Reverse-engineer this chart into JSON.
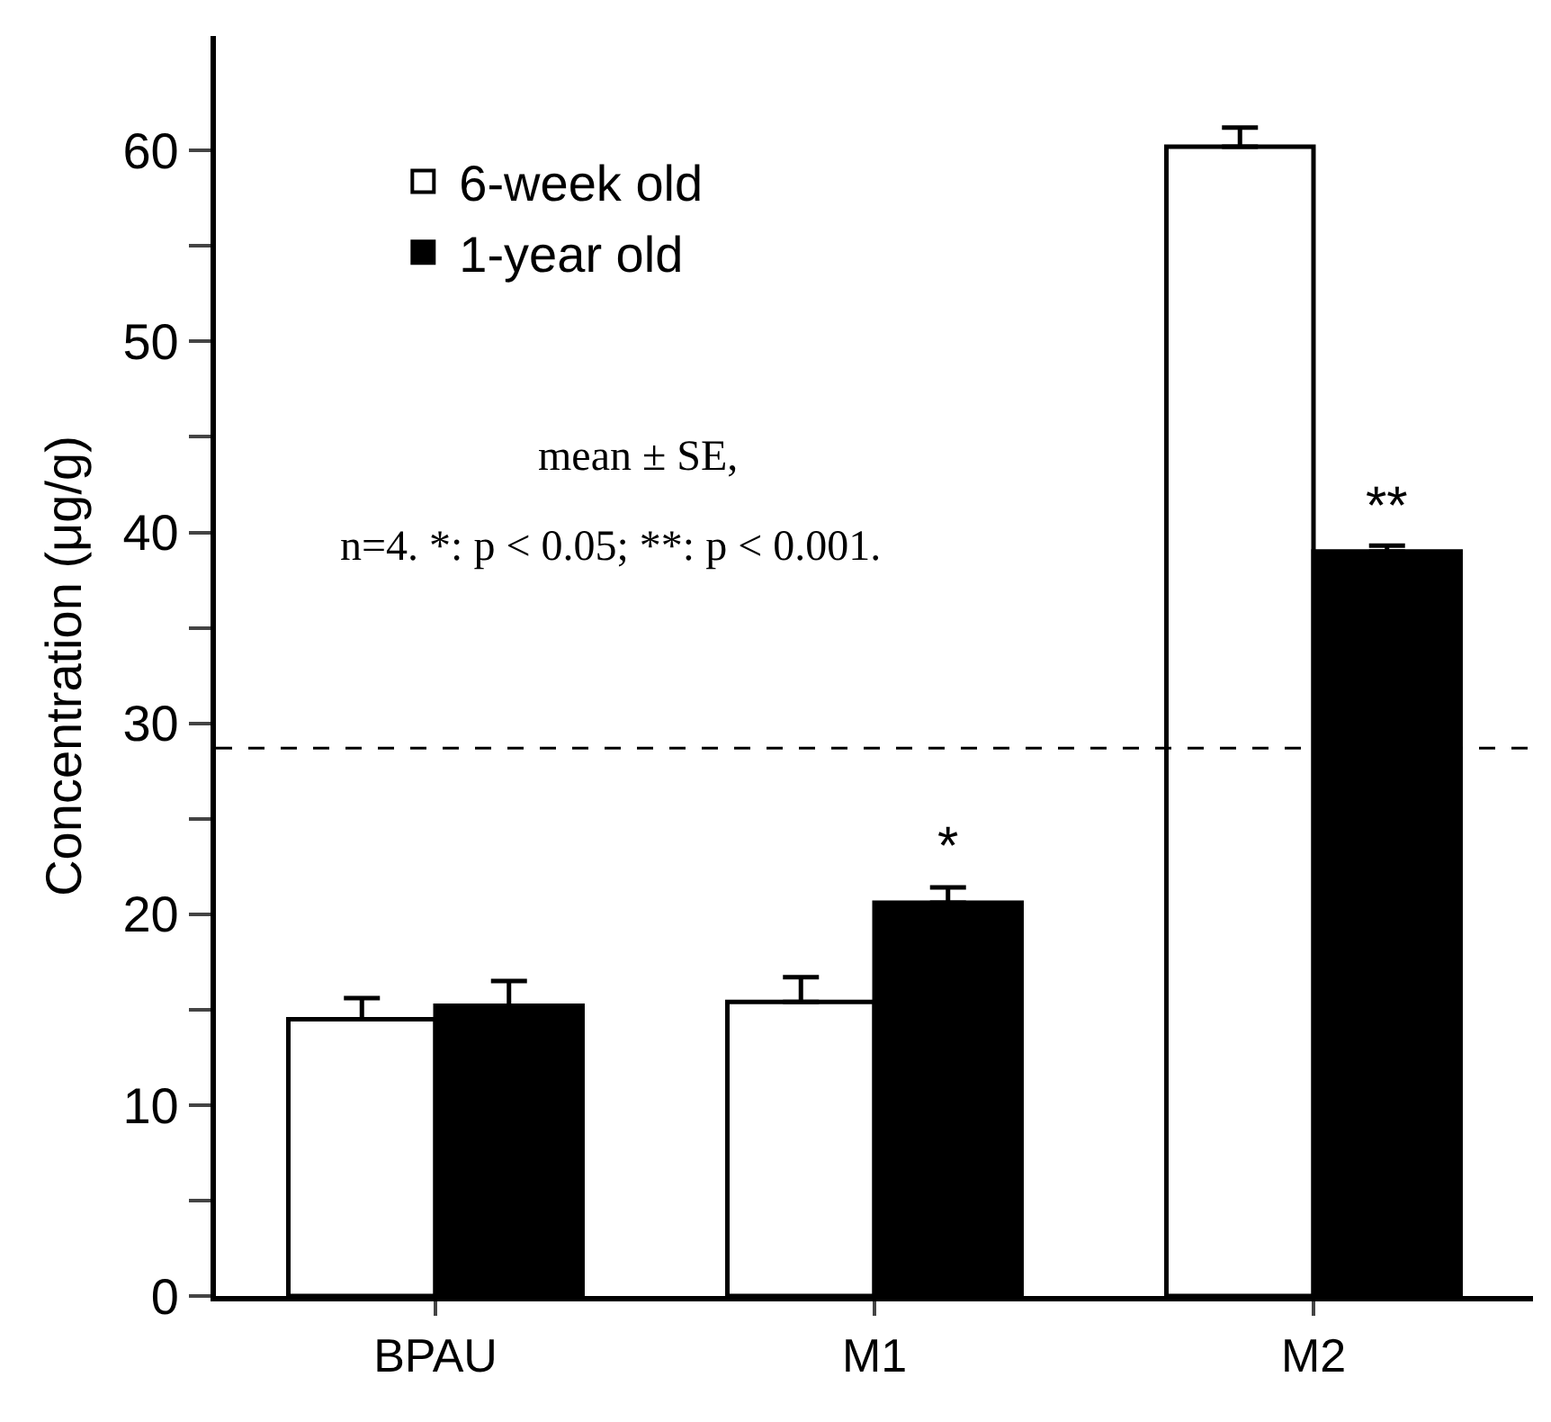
{
  "chart_data": {
    "type": "bar",
    "ylabel": "Concentration (μg/g)",
    "categories": [
      "BPAU",
      "M1",
      "M2"
    ],
    "series": [
      {
        "name": "6-week old",
        "color": "#ffffff",
        "values": [
          14.5,
          15.4,
          60.2
        ],
        "errors": [
          1.1,
          1.3,
          1.0
        ]
      },
      {
        "name": "1-year old",
        "color": "#000000",
        "values": [
          15.2,
          20.6,
          39.0
        ],
        "errors": [
          1.3,
          0.8,
          0.3
        ]
      }
    ],
    "ylim": [
      0,
      66
    ],
    "yticks": [
      0,
      {
        "value": 5,
        "label": null
      },
      10,
      {
        "value": 15,
        "label": null
      },
      20,
      {
        "value": 25,
        "label": null
      },
      30,
      {
        "value": 35,
        "label": null
      },
      40,
      {
        "value": 45,
        "label": null
      },
      50,
      {
        "value": 55,
        "label": null
      },
      60
    ],
    "ref_lines": [
      {
        "axis": "y",
        "value": 28.7,
        "color": "#000000",
        "line_style": "dashed"
      }
    ],
    "annotations": [
      "*",
      "**",
      "mean ± SE,",
      "n=4. *: p < 0.05; **: p < 0.001."
    ],
    "legend": "top left"
  }
}
